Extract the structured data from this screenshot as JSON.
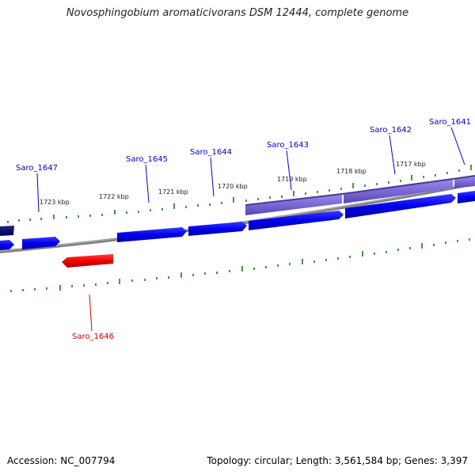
{
  "title": "Novosphingobium aromaticivorans DSM 12444, complete genome",
  "footer": {
    "accession": "Accession: NC_007794",
    "summary": "Topology: circular; Length: 3,561,584 bp; Genes: 3,397"
  },
  "colors": {
    "forward_gene": "#0000ee",
    "reverse_gene": "#ee0000",
    "operon": "#7b68d6",
    "tick": "#2e8b2e",
    "backbone": "#808080",
    "label_forward": "#0000cc",
    "label_reverse": "#cc0000"
  },
  "scale_labels": [
    "1723 kbp",
    "1722 kbp",
    "1721 kbp",
    "1720 kbp",
    "1719 kbp",
    "1718 kbp",
    "1717 kbp"
  ],
  "gene_labels": [
    {
      "name": "Saro_1647",
      "strand": "forward"
    },
    {
      "name": "Saro_1645",
      "strand": "forward"
    },
    {
      "name": "Saro_1644",
      "strand": "forward"
    },
    {
      "name": "Saro_1643",
      "strand": "forward"
    },
    {
      "name": "Saro_1642",
      "strand": "forward"
    },
    {
      "name": "Saro_1641",
      "strand": "forward"
    },
    {
      "name": "Saro_1646",
      "strand": "reverse"
    }
  ]
}
